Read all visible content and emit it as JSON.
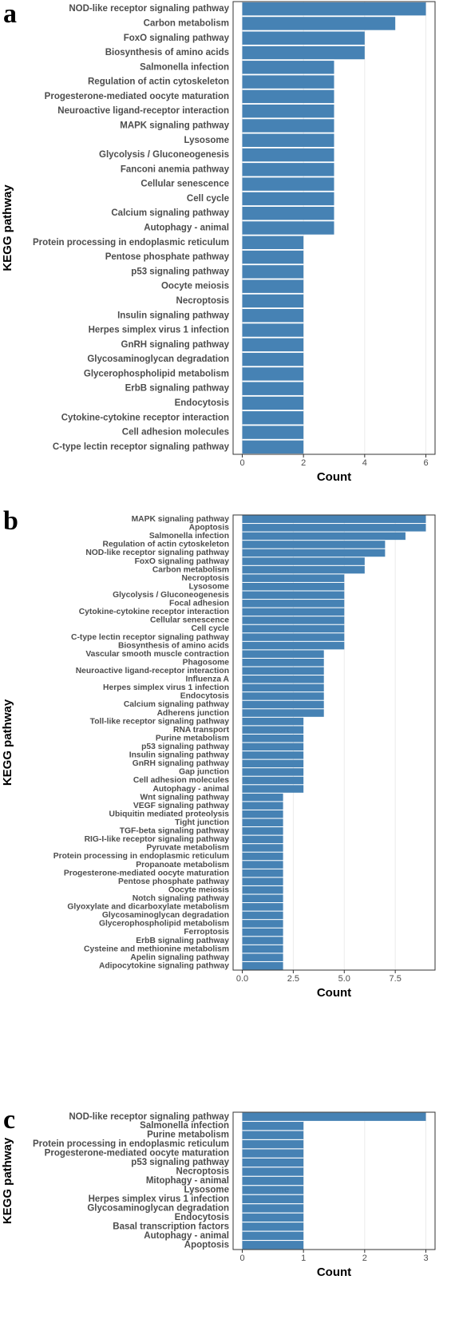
{
  "chart_data": [
    {
      "type": "bar",
      "orientation": "horizontal",
      "panel_label": "a",
      "ylabel": "KEGG pathway",
      "xlabel": "Count",
      "color": "#4682b4",
      "grid": true,
      "categories": [
        "NOD-like receptor signaling pathway",
        "Carbon metabolism",
        "FoxO signaling pathway",
        "Biosynthesis of amino acids",
        "Salmonella infection",
        "Regulation of actin cytoskeleton",
        "Progesterone-mediated oocyte maturation",
        "Neuroactive ligand-receptor interaction",
        "MAPK signaling pathway",
        "Lysosome",
        "Glycolysis / Gluconeogenesis",
        "Fanconi anemia pathway",
        "Cellular senescence",
        "Cell cycle",
        "Calcium signaling pathway",
        "Autophagy - animal",
        "Protein processing in endoplasmic reticulum",
        "Pentose phosphate pathway",
        "p53 signaling pathway",
        "Oocyte meiosis",
        "Necroptosis",
        "Insulin signaling pathway",
        "Herpes simplex virus 1 infection",
        "GnRH signaling pathway",
        "Glycosaminoglycan degradation",
        "Glycerophospholipid metabolism",
        "ErbB signaling pathway",
        "Endocytosis",
        "Cytokine-cytokine receptor interaction",
        "Cell adhesion molecules",
        "C-type lectin receptor signaling pathway"
      ],
      "values": [
        6,
        5,
        4,
        4,
        3,
        3,
        3,
        3,
        3,
        3,
        3,
        3,
        3,
        3,
        3,
        3,
        2,
        2,
        2,
        2,
        2,
        2,
        2,
        2,
        2,
        2,
        2,
        2,
        2,
        2,
        2
      ],
      "xlim": [
        -0.3,
        6.3
      ],
      "xticks": [
        0,
        2,
        4,
        6
      ]
    },
    {
      "type": "bar",
      "orientation": "horizontal",
      "panel_label": "b",
      "ylabel": "KEGG pathway",
      "xlabel": "Count",
      "color": "#4682b4",
      "grid": true,
      "categories": [
        "MAPK signaling pathway",
        "Apoptosis",
        "Salmonella infection",
        "Regulation of actin cytoskeleton",
        "NOD-like receptor signaling pathway",
        "FoxO signaling pathway",
        "Carbon metabolism",
        "Necroptosis",
        "Lysosome",
        "Glycolysis / Gluconeogenesis",
        "Focal adhesion",
        "Cytokine-cytokine receptor interaction",
        "Cellular senescence",
        "Cell cycle",
        "C-type lectin receptor signaling pathway",
        "Biosynthesis of amino acids",
        "Vascular smooth muscle contraction",
        "Phagosome",
        "Neuroactive ligand-receptor interaction",
        "Influenza A",
        "Herpes simplex virus 1 infection",
        "Endocytosis",
        "Calcium signaling pathway",
        "Adherens junction",
        "Toll-like receptor signaling pathway",
        "RNA transport",
        "Purine metabolism",
        "p53 signaling pathway",
        "Insulin signaling pathway",
        "GnRH signaling pathway",
        "Gap junction",
        "Cell adhesion molecules",
        "Autophagy - animal",
        "Wnt signaling pathway",
        "VEGF signaling pathway",
        "Ubiquitin mediated proteolysis",
        "Tight junction",
        "TGF-beta signaling pathway",
        "RIG-I-like receptor signaling pathway",
        "Pyruvate metabolism",
        "Protein processing in endoplasmic reticulum",
        "Propanoate metabolism",
        "Progesterone-mediated oocyte maturation",
        "Pentose phosphate pathway",
        "Oocyte meiosis",
        "Notch signaling pathway",
        "Glyoxylate and dicarboxylate metabolism",
        "Glycosaminoglycan degradation",
        "Glycerophospholipid metabolism",
        "Ferroptosis",
        "ErbB signaling pathway",
        "Cysteine and methionine metabolism",
        "Apelin signaling pathway",
        "Adipocytokine signaling pathway"
      ],
      "values": [
        9,
        9,
        8,
        7,
        7,
        6,
        6,
        5,
        5,
        5,
        5,
        5,
        5,
        5,
        5,
        5,
        4,
        4,
        4,
        4,
        4,
        4,
        4,
        4,
        3,
        3,
        3,
        3,
        3,
        3,
        3,
        3,
        3,
        2,
        2,
        2,
        2,
        2,
        2,
        2,
        2,
        2,
        2,
        2,
        2,
        2,
        2,
        2,
        2,
        2,
        2,
        2,
        2,
        2
      ],
      "xlim": [
        -0.45,
        9.45
      ],
      "xticks": [
        {
          "value": 0,
          "label": "0.0"
        },
        2.5,
        {
          "value": 5,
          "label": "5.0"
        },
        7.5
      ]
    },
    {
      "type": "bar",
      "orientation": "horizontal",
      "panel_label": "c",
      "ylabel": "KEGG pathway",
      "xlabel": "Count",
      "color": "#4682b4",
      "grid": true,
      "categories": [
        "NOD-like receptor signaling pathway",
        "Salmonella infection",
        "Purine metabolism",
        "Protein processing in endoplasmic reticulum",
        "Progesterone-mediated oocyte maturation",
        "p53 signaling pathway",
        "Necroptosis",
        "Mitophagy - animal",
        "Lysosome",
        "Herpes simplex virus 1 infection",
        "Glycosaminoglycan degradation",
        "Endocytosis",
        "Basal transcription factors",
        "Autophagy - animal",
        "Apoptosis"
      ],
      "values": [
        3,
        1,
        1,
        1,
        1,
        1,
        1,
        1,
        1,
        1,
        1,
        1,
        1,
        1,
        1
      ],
      "xlim": [
        -0.15,
        3.15
      ],
      "xticks": [
        0,
        1,
        2,
        3
      ]
    }
  ]
}
